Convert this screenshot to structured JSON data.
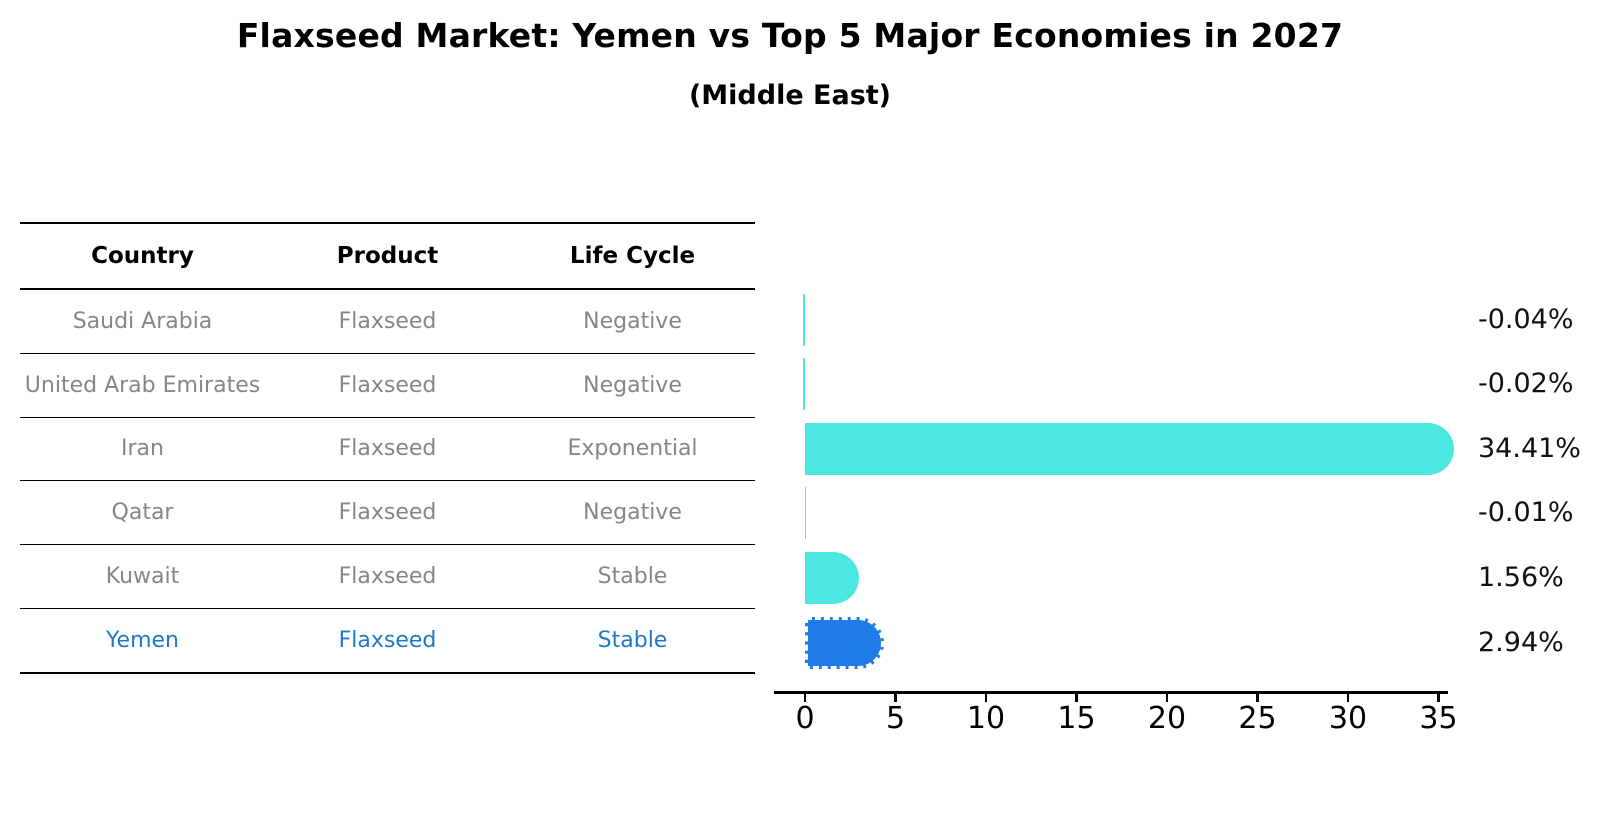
{
  "title": "Flaxseed Market: Yemen vs Top 5 Major Economies in 2027",
  "subtitle": "(Middle East)",
  "table": {
    "headers": [
      "Country",
      "Product",
      "Life Cycle"
    ],
    "rows": [
      {
        "country": "Saudi Arabia",
        "product": "Flaxseed",
        "life_cycle": "Negative",
        "highlighted": false
      },
      {
        "country": "United Arab Emirates",
        "product": "Flaxseed",
        "life_cycle": "Negative",
        "highlighted": false
      },
      {
        "country": "Iran",
        "product": "Flaxseed",
        "life_cycle": "Exponential",
        "highlighted": false
      },
      {
        "country": "Qatar",
        "product": "Flaxseed",
        "life_cycle": "Negative",
        "highlighted": false
      },
      {
        "country": "Kuwait",
        "product": "Flaxseed",
        "life_cycle": "Stable",
        "highlighted": false
      },
      {
        "country": "Yemen",
        "product": "Flaxseed",
        "life_cycle": "Stable",
        "highlighted": true
      }
    ]
  },
  "chart_data": {
    "type": "bar",
    "orientation": "horizontal",
    "categories": [
      "Saudi Arabia",
      "United Arab Emirates",
      "Iran",
      "Qatar",
      "Kuwait",
      "Yemen"
    ],
    "values": [
      -0.04,
      -0.02,
      34.41,
      -0.01,
      1.56,
      2.94
    ],
    "value_labels": [
      "-0.04%",
      "-0.02%",
      "34.41%",
      "-0.01%",
      "1.56%",
      "2.94%"
    ],
    "xticks": [
      0,
      5,
      10,
      15,
      20,
      25,
      30,
      35
    ],
    "xlim": [
      -1.7,
      35.6
    ],
    "grid": false,
    "legend": "none",
    "highlight_index": 5,
    "colors": {
      "bar_default": "#4de7e2",
      "bar_highlight": "#207ce8",
      "highlight_text": "#1e7ac9",
      "row_text": "#868686",
      "axis": "#000000"
    }
  }
}
